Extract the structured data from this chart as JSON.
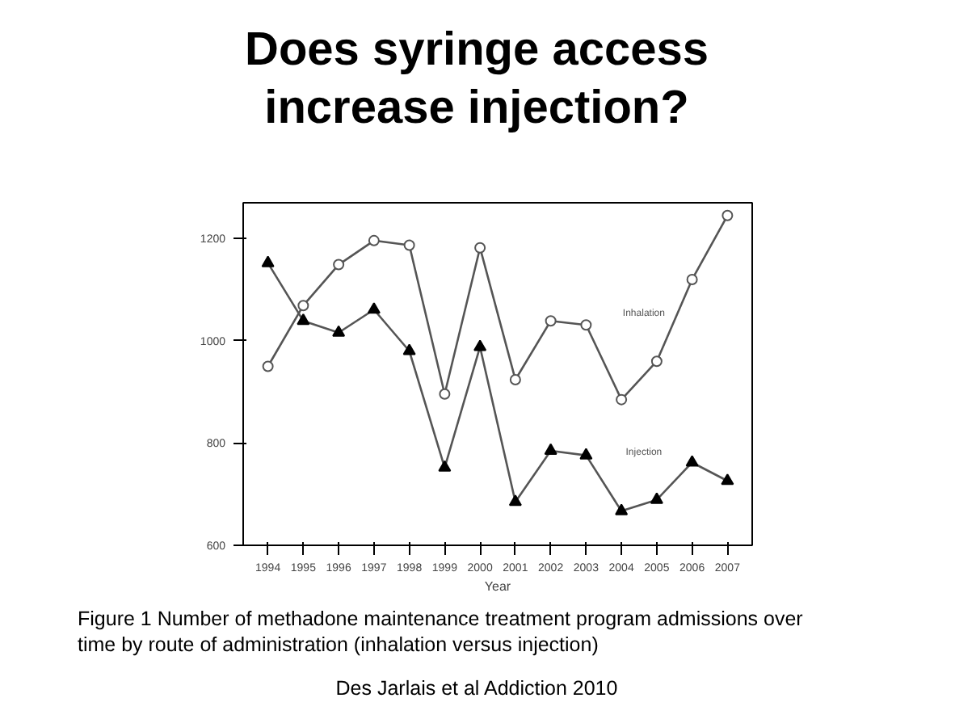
{
  "chart_data": {
    "type": "line",
    "title": "Does syringe access increase injection?",
    "xlabel": "Year",
    "x": [
      1994,
      1995,
      1996,
      1997,
      1998,
      1999,
      2000,
      2001,
      2002,
      2003,
      2004,
      2005,
      2006,
      2007
    ],
    "series": [
      {
        "name": "Inhalation",
        "color": "#555555",
        "marker": "circle",
        "values": [
          950,
          1069,
          1149,
          1196,
          1187,
          896,
          1182,
          924,
          1039,
          1031,
          885,
          960,
          1120,
          1245
        ]
      },
      {
        "name": "Injection",
        "color": "#555555",
        "marker": "triangle",
        "values": [
          1152,
          1039,
          1016,
          1061,
          980,
          752,
          988,
          685,
          785,
          776,
          667,
          689,
          762,
          726
        ]
      }
    ],
    "xlim": [
      1993.3,
      2007.7
    ],
    "ylim": [
      600,
      1270
    ],
    "xticks": [
      1994,
      1995,
      1996,
      1997,
      1998,
      1999,
      2000,
      2001,
      2002,
      2003,
      2004,
      2005,
      2006,
      2007
    ],
    "yticks": [
      600,
      800,
      1000,
      1200
    ],
    "grid": false,
    "annotations": [
      "Figure 1 Number of methadone maintenance treatment program admissions over time by route of administration (inhalation versus injection)",
      "Des Jarlais et al Addiction 2010"
    ]
  }
}
